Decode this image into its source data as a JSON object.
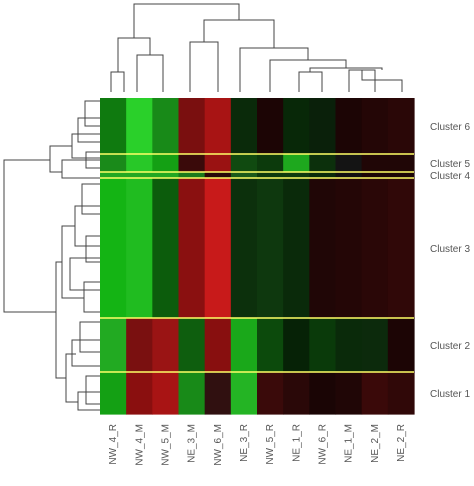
{
  "chart_data": {
    "type": "heatmap",
    "columns": [
      "NW_4_R",
      "NW_4_M",
      "NW_5_M",
      "NE_3_M",
      "NW_6_M",
      "NE_3_R",
      "NW_5_R",
      "NE_1_R",
      "NW_6_R",
      "NE_1_M",
      "NE_2_M",
      "NE_2_R"
    ],
    "clusters": [
      {
        "label": "Cluster 6",
        "colors": [
          "#0f7a0f",
          "#2ad02a",
          "#188a18",
          "#7a0f0f",
          "#a81414",
          "#0a2a0a",
          "#1c0505",
          "#082808",
          "#0a200a",
          "#1c0505",
          "#240606",
          "#2a0707"
        ]
      },
      {
        "label": "Cluster 5",
        "colors": [
          "#1a8a1a",
          "#28c828",
          "#14a014",
          "#3a0a0a",
          "#9a1212",
          "#104a10",
          "#0c3a0c",
          "#1ea81e",
          "#0c300c",
          "#141414",
          "#200606",
          "#200606"
        ]
      },
      {
        "label": "Cluster 4",
        "colors": [
          "#22a822",
          "#22a822",
          "#22a822",
          "#1c7a1c",
          "#2a0808",
          "#1a5a1a",
          "#0c3a0c",
          "#0e3a0e",
          "#0a2a0a",
          "#101010",
          "#1c0505",
          "#1c0505"
        ]
      },
      {
        "label": "Cluster 3",
        "colors": [
          "#14b414",
          "#20bc20",
          "#0c5c0c",
          "#8a1010",
          "#c81a1a",
          "#0c300c",
          "#0e380e",
          "#0a2a0a",
          "#200606",
          "#240606",
          "#2a0707",
          "#300808"
        ]
      },
      {
        "label": "Cluster 2",
        "colors": [
          "#22aa22",
          "#7a1010",
          "#9a1414",
          "#0e5e0e",
          "#880f0f",
          "#1aa81a",
          "#0c4a0c",
          "#062206",
          "#0a3a0a",
          "#0a2a0a",
          "#0c2a0c",
          "#1c0505"
        ]
      },
      {
        "label": "Cluster 1",
        "colors": [
          "#14a014",
          "#8a0f0f",
          "#a81414",
          "#188a18",
          "#301010",
          "#24b424",
          "#3a0a0a",
          "#2a0808",
          "#1a0505",
          "#200606",
          "#3a0909",
          "#300808"
        ]
      }
    ]
  }
}
